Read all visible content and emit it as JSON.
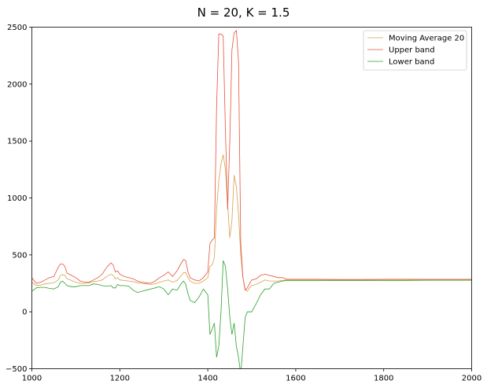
{
  "chart_data": {
    "type": "line",
    "title": "N = 20, K = 1.5",
    "xlabel": "",
    "ylabel": "",
    "xlim": [
      1000,
      2000
    ],
    "ylim": [
      -500,
      2500
    ],
    "x_ticks": [
      1000,
      1200,
      1400,
      1600,
      1800,
      2000
    ],
    "y_ticks": [
      -500,
      0,
      500,
      1000,
      1500,
      2000,
      2500
    ],
    "grid": false,
    "legend": "top-right",
    "series": [
      {
        "name": "Moving Average 20",
        "color": "#d2a24c",
        "x": [
          1000,
          1010,
          1020,
          1030,
          1040,
          1050,
          1060,
          1065,
          1070,
          1075,
          1080,
          1090,
          1100,
          1110,
          1120,
          1130,
          1140,
          1150,
          1160,
          1170,
          1180,
          1185,
          1190,
          1195,
          1200,
          1210,
          1220,
          1230,
          1240,
          1250,
          1260,
          1270,
          1280,
          1290,
          1300,
          1310,
          1320,
          1330,
          1340,
          1345,
          1350,
          1355,
          1360,
          1370,
          1380,
          1390,
          1400,
          1405,
          1410,
          1415,
          1420,
          1425,
          1430,
          1435,
          1440,
          1445,
          1450,
          1455,
          1460,
          1465,
          1470,
          1475,
          1480,
          1485,
          1490,
          1495,
          1500,
          1510,
          1520,
          1530,
          1540,
          1550,
          1560,
          1570,
          1580,
          1600,
          1650,
          1700,
          1750,
          1800,
          1850,
          1900,
          1950,
          2000
        ],
        "y": [
          260,
          230,
          235,
          245,
          250,
          255,
          280,
          320,
          325,
          320,
          290,
          275,
          260,
          250,
          250,
          255,
          265,
          270,
          280,
          310,
          330,
          320,
          290,
          300,
          280,
          275,
          270,
          265,
          255,
          250,
          245,
          240,
          245,
          260,
          270,
          280,
          260,
          275,
          320,
          345,
          345,
          300,
          270,
          250,
          250,
          270,
          300,
          400,
          410,
          480,
          900,
          1150,
          1300,
          1380,
          1250,
          950,
          650,
          800,
          1200,
          1100,
          850,
          500,
          300,
          200,
          180,
          210,
          230,
          240,
          260,
          280,
          270,
          270,
          270,
          275,
          280,
          280,
          280,
          278,
          278,
          280,
          280,
          282,
          282,
          282
        ]
      },
      {
        "name": "Upper band",
        "color": "#e8503a",
        "x": [
          1000,
          1010,
          1020,
          1030,
          1040,
          1050,
          1060,
          1065,
          1070,
          1075,
          1080,
          1090,
          1100,
          1110,
          1120,
          1130,
          1140,
          1150,
          1160,
          1170,
          1180,
          1185,
          1190,
          1195,
          1200,
          1210,
          1220,
          1230,
          1240,
          1250,
          1260,
          1270,
          1280,
          1290,
          1300,
          1310,
          1320,
          1330,
          1340,
          1345,
          1350,
          1355,
          1360,
          1370,
          1380,
          1390,
          1400,
          1405,
          1410,
          1415,
          1420,
          1425,
          1430,
          1435,
          1440,
          1445,
          1450,
          1455,
          1460,
          1465,
          1470,
          1475,
          1480,
          1485,
          1490,
          1495,
          1500,
          1510,
          1520,
          1530,
          1540,
          1550,
          1560,
          1570,
          1580,
          1600,
          1650,
          1700,
          1750,
          1800,
          1850,
          1900,
          1950,
          2000
        ],
        "y": [
          300,
          250,
          260,
          280,
          300,
          310,
          390,
          420,
          420,
          400,
          340,
          320,
          300,
          270,
          260,
          260,
          280,
          300,
          330,
          390,
          430,
          410,
          350,
          360,
          330,
          310,
          300,
          290,
          270,
          260,
          255,
          250,
          270,
          300,
          320,
          350,
          310,
          360,
          430,
          460,
          450,
          350,
          300,
          280,
          270,
          300,
          350,
          600,
          630,
          650,
          1800,
          2440,
          2440,
          2420,
          1600,
          900,
          1500,
          2300,
          2450,
          2470,
          2200,
          600,
          300,
          190,
          210,
          250,
          280,
          290,
          320,
          330,
          320,
          310,
          300,
          300,
          285,
          285,
          285,
          283,
          283,
          285,
          285,
          285,
          285,
          285
        ]
      },
      {
        "name": "Lower band",
        "color": "#2ca02c",
        "x": [
          1000,
          1010,
          1020,
          1030,
          1040,
          1050,
          1060,
          1065,
          1070,
          1075,
          1080,
          1090,
          1100,
          1110,
          1120,
          1130,
          1140,
          1150,
          1160,
          1170,
          1180,
          1185,
          1190,
          1195,
          1200,
          1210,
          1220,
          1230,
          1240,
          1250,
          1260,
          1270,
          1280,
          1290,
          1300,
          1310,
          1320,
          1330,
          1340,
          1345,
          1350,
          1355,
          1360,
          1370,
          1380,
          1390,
          1400,
          1405,
          1410,
          1415,
          1420,
          1425,
          1430,
          1435,
          1440,
          1445,
          1450,
          1455,
          1460,
          1465,
          1470,
          1475,
          1480,
          1485,
          1490,
          1495,
          1500,
          1510,
          1520,
          1530,
          1540,
          1550,
          1560,
          1570,
          1580,
          1600,
          1650,
          1700,
          1750,
          1800,
          1850,
          1900,
          1950,
          2000
        ],
        "y": [
          180,
          210,
          215,
          215,
          205,
          200,
          220,
          260,
          270,
          250,
          230,
          220,
          220,
          230,
          230,
          230,
          245,
          240,
          230,
          225,
          230,
          210,
          210,
          240,
          230,
          230,
          225,
          190,
          170,
          180,
          190,
          200,
          210,
          220,
          200,
          150,
          200,
          190,
          250,
          270,
          240,
          160,
          100,
          80,
          130,
          200,
          150,
          -200,
          -150,
          -100,
          -400,
          -300,
          0,
          450,
          400,
          200,
          -50,
          -200,
          -100,
          -300,
          -400,
          -550,
          -300,
          -50,
          0,
          0,
          0,
          70,
          150,
          200,
          200,
          250,
          260,
          270,
          275,
          275,
          275,
          275,
          275,
          275,
          275,
          277,
          277,
          277
        ]
      }
    ]
  }
}
